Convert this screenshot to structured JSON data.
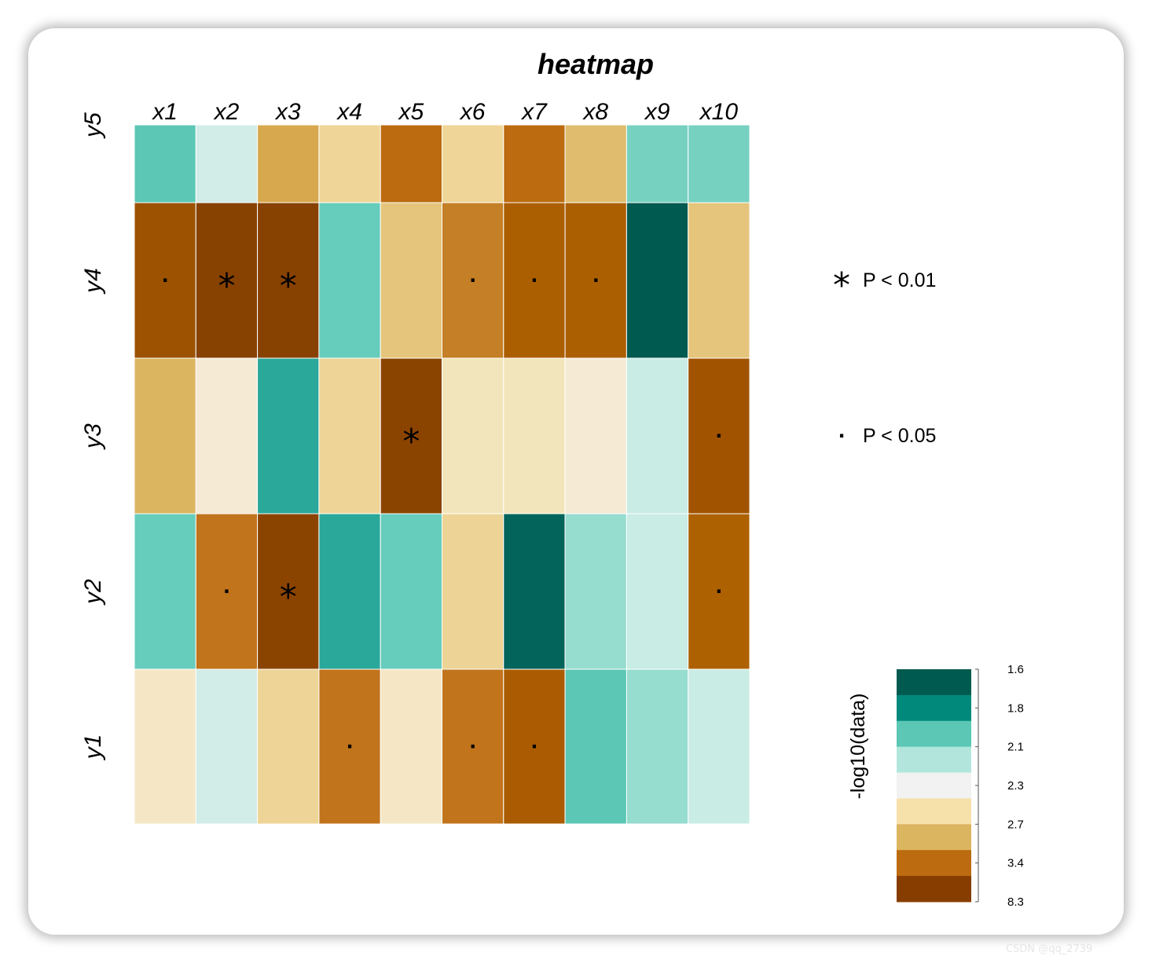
{
  "chart_data": {
    "type": "heatmap",
    "title": "heatmap",
    "x_labels": [
      "x1",
      "x2",
      "x3",
      "x4",
      "x5",
      "x6",
      "x7",
      "x8",
      "x9",
      "x10"
    ],
    "y_labels": [
      "y5",
      "y4",
      "y3",
      "y2",
      "y1"
    ],
    "values": [
      [
        2.1,
        2.2,
        2.9,
        2.6,
        3.6,
        2.6,
        3.6,
        2.8,
        2.0,
        2.0
      ],
      [
        4.5,
        6.0,
        6.0,
        2.0,
        2.7,
        3.3,
        4.0,
        4.0,
        1.6,
        2.7
      ],
      [
        2.8,
        2.4,
        1.9,
        2.6,
        6.0,
        2.5,
        2.5,
        2.4,
        2.2,
        4.5
      ],
      [
        2.0,
        3.4,
        6.0,
        1.9,
        2.0,
        2.6,
        1.6,
        2.1,
        2.2,
        4.0
      ],
      [
        2.5,
        2.2,
        2.6,
        3.4,
        2.5,
        3.4,
        4.0,
        2.1,
        2.1,
        2.2
      ]
    ],
    "cell_colors": [
      [
        "#5bc7b4",
        "#d2ece8",
        "#d8a84e",
        "#efd597",
        "#bc6b10",
        "#efd597",
        "#bc6b10",
        "#e0bc6e",
        "#76d1c1",
        "#76d1c1"
      ],
      [
        "#9c5200",
        "#874100",
        "#874100",
        "#66ccbb",
        "#e5c57c",
        "#c57f26",
        "#ac5f00",
        "#ac5f00",
        "#005a4f",
        "#e5c57c"
      ],
      [
        "#dcb560",
        "#f5ead4",
        "#2aa89a",
        "#eed496",
        "#8b4400",
        "#f3e5bb",
        "#f3e5bb",
        "#f5ead4",
        "#c9ece5",
        "#a15300"
      ],
      [
        "#66ccbb",
        "#c1741b",
        "#8b4400",
        "#2aa89a",
        "#66ccbb",
        "#edd496",
        "#02645a",
        "#96dccf",
        "#c9ece5",
        "#ae6100"
      ],
      [
        "#f5e7c5",
        "#d2ece8",
        "#eed496",
        "#c1741b",
        "#f5e7c5",
        "#c1741b",
        "#ab5c02",
        "#5bc7b4",
        "#96dccf",
        "#c9ece5"
      ]
    ],
    "significance": [
      [
        "",
        "",
        "",
        "",
        "",
        "",
        "",
        "",
        "",
        ""
      ],
      [
        ".",
        "*",
        "*",
        "",
        "",
        ".",
        ".",
        ".",
        "",
        ""
      ],
      [
        "",
        "",
        "",
        "",
        "*",
        "",
        "",
        "",
        "",
        "."
      ],
      [
        "",
        ".",
        "*",
        "",
        "",
        "",
        "",
        "",
        "",
        "."
      ],
      [
        "",
        "",
        "",
        ".",
        "",
        ".",
        ".",
        "",
        "",
        ""
      ]
    ],
    "legend": {
      "items": [
        {
          "symbol": "*",
          "label": "P < 0.01"
        },
        {
          "symbol": ".",
          "label": "P < 0.05"
        }
      ]
    },
    "colorbar": {
      "title": "-log10(data)",
      "colors": [
        "#015a4f",
        "#018a7c",
        "#5bc7b4",
        "#b2e6dc",
        "#f2f2f2",
        "#f7e1ab",
        "#dcb560",
        "#bc6b10",
        "#873d00"
      ],
      "tick_labels": [
        "1.6",
        "1.8",
        "2.1",
        "2.3",
        "2.7",
        "3.4",
        "8.3"
      ]
    }
  },
  "watermark": "CSDN @qq_2739"
}
